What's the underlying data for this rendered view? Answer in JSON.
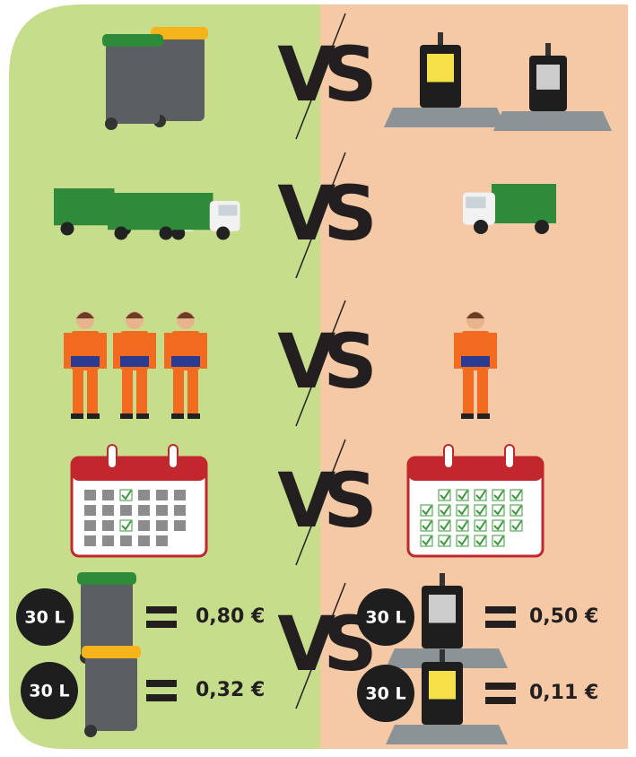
{
  "vs": [
    "VS",
    "VS",
    "VS",
    "VS",
    "VS"
  ],
  "pricing": {
    "left": [
      {
        "volume": "30 L",
        "price": "0,80 €"
      },
      {
        "volume": "30 L",
        "price": "0,32 €"
      }
    ],
    "right": [
      {
        "volume": "30 L",
        "price": "0,50 €"
      },
      {
        "volume": "30 L",
        "price": "0,11 €"
      }
    ]
  }
}
